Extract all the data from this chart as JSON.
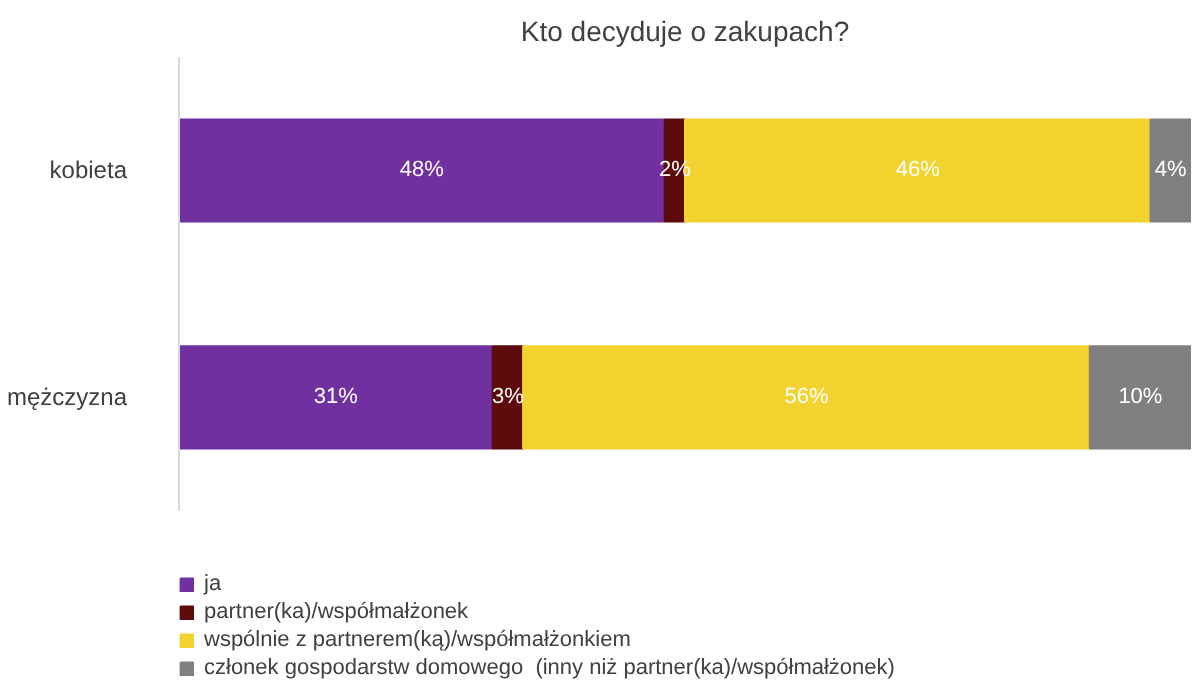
{
  "chart_data": {
    "type": "bar",
    "orientation": "horizontal",
    "stacked": true,
    "title": "Kto decyduje o zakupach?",
    "categories": [
      "kobieta",
      "mężczyzna"
    ],
    "series": [
      {
        "name": "ja",
        "color": "#7030a0",
        "values": [
          48,
          31
        ],
        "value_labels": [
          "48%",
          "31%"
        ]
      },
      {
        "name": "partner(ka)/współmałżonek",
        "color": "#5c0a0a",
        "values": [
          2,
          3
        ],
        "value_labels": [
          "2%",
          "3%"
        ]
      },
      {
        "name": "wspólnie z partnerem(ką)/współmałżonkiem",
        "color": "#f2d330",
        "values": [
          46,
          56
        ],
        "value_labels": [
          "46%",
          "56%"
        ]
      },
      {
        "name": "członek gospodarstw domowego  (inny niż partner(ka)/współmałżonek)",
        "color": "#808080",
        "values": [
          4,
          10
        ],
        "value_labels": [
          "4%",
          "10%"
        ]
      }
    ],
    "legend": "bottom",
    "tick_labels": "y",
    "grid": false
  }
}
